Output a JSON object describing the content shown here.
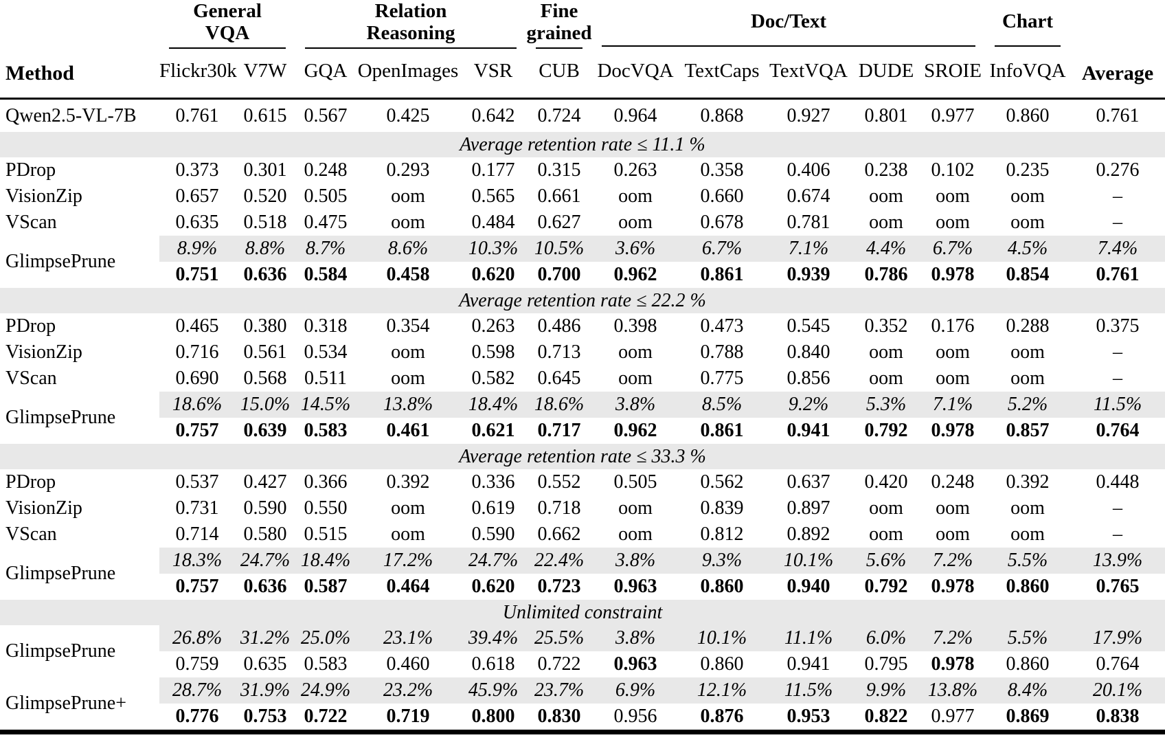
{
  "colors": {
    "shade": "#e8e8e8",
    "rule": "#000000",
    "text": "#000000",
    "background": "#ffffff"
  },
  "header": {
    "method": "Method",
    "average": "Average",
    "groups": [
      {
        "label": "General VQA",
        "columns": [
          "Flickr30k",
          "V7W"
        ]
      },
      {
        "label": "Relation Reasoning",
        "columns": [
          "GQA",
          "OpenImages",
          "VSR"
        ]
      },
      {
        "label": "Fine grained",
        "columns": [
          "CUB"
        ]
      },
      {
        "label": "Doc/Text",
        "columns": [
          "DocVQA",
          "TextCaps",
          "TextVQA",
          "DUDE",
          "SROIE"
        ]
      },
      {
        "label": "Chart",
        "columns": [
          "InfoVQA"
        ]
      }
    ]
  },
  "rows": [
    {
      "type": "data",
      "method": "Qwen2.5-VL-7B",
      "qwen": true,
      "values": [
        "0.761",
        "0.615",
        "0.567",
        "0.425",
        "0.642",
        "0.724",
        "0.964",
        "0.868",
        "0.927",
        "0.801",
        "0.977",
        "0.860",
        "0.761"
      ]
    },
    {
      "type": "section",
      "label": "Average retention rate ≤ 11.1 %"
    },
    {
      "type": "data",
      "method": "PDrop",
      "values": [
        "0.373",
        "0.301",
        "0.248",
        "0.293",
        "0.177",
        "0.315",
        "0.263",
        "0.358",
        "0.406",
        "0.238",
        "0.102",
        "0.235",
        "0.276"
      ]
    },
    {
      "type": "data",
      "method": "VisionZip",
      "values": [
        "0.657",
        "0.520",
        "0.505",
        "oom",
        "0.565",
        "0.661",
        "oom",
        "0.660",
        "0.674",
        "oom",
        "oom",
        "oom",
        "–"
      ]
    },
    {
      "type": "data",
      "method": "VScan",
      "values": [
        "0.635",
        "0.518",
        "0.475",
        "oom",
        "0.484",
        "0.627",
        "oom",
        "0.678",
        "0.781",
        "oom",
        "oom",
        "oom",
        "–"
      ]
    },
    {
      "type": "dual",
      "method": "GlimpsePrune",
      "retention": [
        "8.9%",
        "8.8%",
        "8.7%",
        "8.6%",
        "10.3%",
        "10.5%",
        "3.6%",
        "6.7%",
        "7.1%",
        "4.4%",
        "6.7%",
        "4.5%",
        "7.4%"
      ],
      "values": [
        "0.751",
        "0.636",
        "0.584",
        "0.458",
        "0.620",
        "0.700",
        "0.962",
        "0.861",
        "0.939",
        "0.786",
        "0.978",
        "0.854",
        "0.761"
      ],
      "bold": "all"
    },
    {
      "type": "section",
      "label": "Average retention rate ≤ 22.2 %"
    },
    {
      "type": "data",
      "method": "PDrop",
      "values": [
        "0.465",
        "0.380",
        "0.318",
        "0.354",
        "0.263",
        "0.486",
        "0.398",
        "0.473",
        "0.545",
        "0.352",
        "0.176",
        "0.288",
        "0.375"
      ]
    },
    {
      "type": "data",
      "method": "VisionZip",
      "values": [
        "0.716",
        "0.561",
        "0.534",
        "oom",
        "0.598",
        "0.713",
        "oom",
        "0.788",
        "0.840",
        "oom",
        "oom",
        "oom",
        "–"
      ]
    },
    {
      "type": "data",
      "method": "VScan",
      "values": [
        "0.690",
        "0.568",
        "0.511",
        "oom",
        "0.582",
        "0.645",
        "oom",
        "0.775",
        "0.856",
        "oom",
        "oom",
        "oom",
        "–"
      ]
    },
    {
      "type": "dual",
      "method": "GlimpsePrune",
      "retention": [
        "18.6%",
        "15.0%",
        "14.5%",
        "13.8%",
        "18.4%",
        "18.6%",
        "3.8%",
        "8.5%",
        "9.2%",
        "5.3%",
        "7.1%",
        "5.2%",
        "11.5%"
      ],
      "values": [
        "0.757",
        "0.639",
        "0.583",
        "0.461",
        "0.621",
        "0.717",
        "0.962",
        "0.861",
        "0.941",
        "0.792",
        "0.978",
        "0.857",
        "0.764"
      ],
      "bold": "all"
    },
    {
      "type": "section",
      "label": "Average retention rate ≤ 33.3 %"
    },
    {
      "type": "data",
      "method": "PDrop",
      "values": [
        "0.537",
        "0.427",
        "0.366",
        "0.392",
        "0.336",
        "0.552",
        "0.505",
        "0.562",
        "0.637",
        "0.420",
        "0.248",
        "0.392",
        "0.448"
      ]
    },
    {
      "type": "data",
      "method": "VisionZip",
      "values": [
        "0.731",
        "0.590",
        "0.550",
        "oom",
        "0.619",
        "0.718",
        "oom",
        "0.839",
        "0.897",
        "oom",
        "oom",
        "oom",
        "–"
      ]
    },
    {
      "type": "data",
      "method": "VScan",
      "values": [
        "0.714",
        "0.580",
        "0.515",
        "oom",
        "0.590",
        "0.662",
        "oom",
        "0.812",
        "0.892",
        "oom",
        "oom",
        "oom",
        "–"
      ]
    },
    {
      "type": "dual",
      "method": "GlimpsePrune",
      "retention": [
        "18.3%",
        "24.7%",
        "18.4%",
        "17.2%",
        "24.7%",
        "22.4%",
        "3.8%",
        "9.3%",
        "10.1%",
        "5.6%",
        "7.2%",
        "5.5%",
        "13.9%"
      ],
      "values": [
        "0.757",
        "0.636",
        "0.587",
        "0.464",
        "0.620",
        "0.723",
        "0.963",
        "0.860",
        "0.940",
        "0.792",
        "0.978",
        "0.860",
        "0.765"
      ],
      "bold": "all"
    },
    {
      "type": "section",
      "label": "Unlimited constraint"
    },
    {
      "type": "dual",
      "method": "GlimpsePrune",
      "retention": [
        "26.8%",
        "31.2%",
        "25.0%",
        "23.1%",
        "39.4%",
        "25.5%",
        "3.8%",
        "10.1%",
        "11.1%",
        "6.0%",
        "7.2%",
        "5.5%",
        "17.9%"
      ],
      "values": [
        "0.759",
        "0.635",
        "0.583",
        "0.460",
        "0.618",
        "0.722",
        "0.963",
        "0.860",
        "0.941",
        "0.795",
        "0.978",
        "0.860",
        "0.764"
      ],
      "bold": [
        6,
        10
      ]
    },
    {
      "type": "dual",
      "method": "GlimpsePrune+",
      "retention": [
        "28.7%",
        "31.9%",
        "24.9%",
        "23.2%",
        "45.9%",
        "23.7%",
        "6.9%",
        "12.1%",
        "11.5%",
        "9.9%",
        "13.8%",
        "8.4%",
        "20.1%"
      ],
      "values": [
        "0.776",
        "0.753",
        "0.722",
        "0.719",
        "0.800",
        "0.830",
        "0.956",
        "0.876",
        "0.953",
        "0.822",
        "0.977",
        "0.869",
        "0.838"
      ],
      "bold": [
        0,
        1,
        2,
        3,
        4,
        5,
        7,
        8,
        9,
        11,
        12
      ]
    }
  ]
}
